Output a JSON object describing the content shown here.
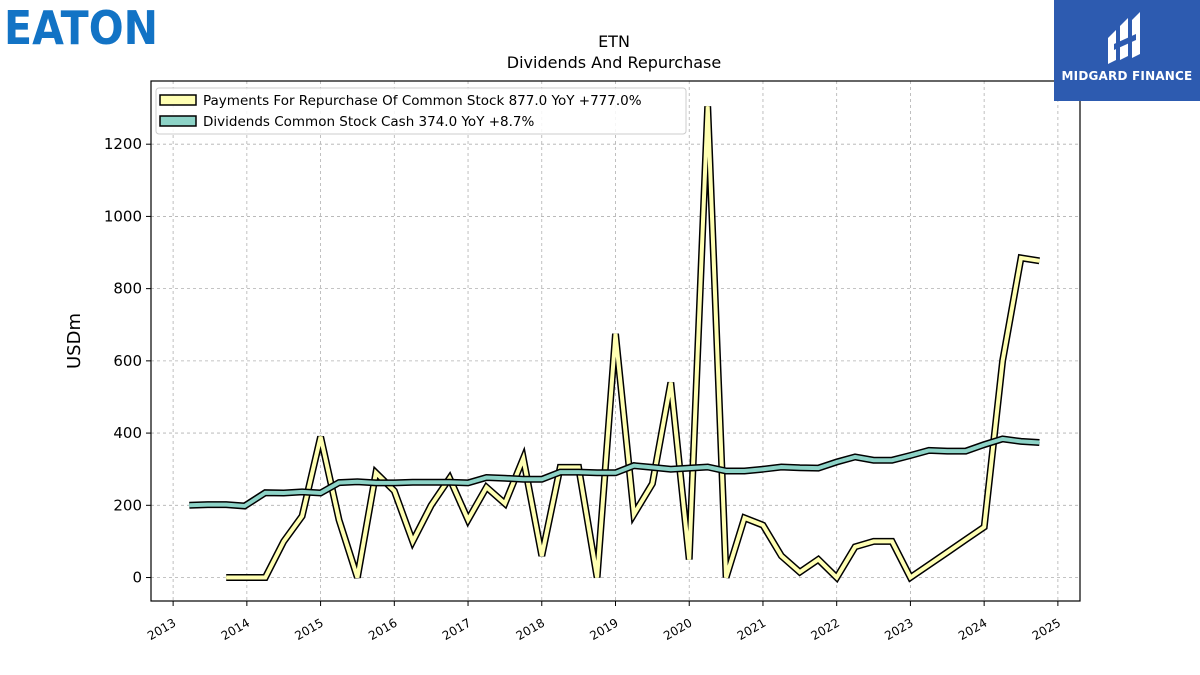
{
  "brand": {
    "company_logo_text": "EATON",
    "company_logo_color": "#1273c5",
    "partner_logo_text": "MIDGARD FINANCE",
    "partner_logo_bg": "#2d5bb0"
  },
  "chart_data": {
    "type": "line",
    "title": "ETN",
    "subtitle": "Dividends And Repurchase",
    "xlabel": "",
    "ylabel": "USDm",
    "xlim": [
      2012.7,
      2025.3
    ],
    "ylim": [
      -65,
      1375
    ],
    "grid": true,
    "legend_position": "top-left",
    "x_ticks": [
      "2013",
      "2014",
      "2015",
      "2016",
      "2017",
      "2018",
      "2019",
      "2020",
      "2021",
      "2022",
      "2023",
      "2024",
      "2025"
    ],
    "y_ticks": [
      "0",
      "200",
      "400",
      "600",
      "800",
      "1000",
      "1200"
    ],
    "series": [
      {
        "name": "Payments For Repurchase Of Common Stock  877.0 YoY +777.0%",
        "color": "#ffffb3",
        "x": [
          2013.72,
          2013.97,
          2014.25,
          2014.5,
          2014.75,
          2015.0,
          2015.25,
          2015.5,
          2015.75,
          2016.0,
          2016.25,
          2016.5,
          2016.75,
          2017.0,
          2017.25,
          2017.5,
          2017.75,
          2018.0,
          2018.25,
          2018.5,
          2018.75,
          2019.0,
          2019.25,
          2019.5,
          2019.75,
          2020.0,
          2020.25,
          2020.5,
          2020.75,
          2021.0,
          2021.25,
          2021.5,
          2021.75,
          2022.0,
          2022.25,
          2022.5,
          2022.75,
          2023.0,
          2023.25,
          2023.5,
          2023.75,
          2024.0,
          2024.25,
          2024.5,
          2024.75
        ],
        "values": [
          0,
          0,
          0,
          100,
          170,
          390,
          160,
          0,
          290,
          240,
          100,
          200,
          275,
          160,
          250,
          205,
          330,
          60,
          305,
          305,
          0,
          675,
          175,
          260,
          540,
          50,
          1305,
          0,
          165,
          145,
          60,
          15,
          50,
          0,
          85,
          100,
          100,
          0,
          35,
          70,
          105,
          140,
          600,
          885,
          877
        ]
      },
      {
        "name": "Dividends Common Stock Cash  374.0 YoY +8.7%",
        "color": "#8dd3c7",
        "x": [
          2013.22,
          2013.47,
          2013.72,
          2013.97,
          2014.25,
          2014.5,
          2014.75,
          2015.0,
          2015.25,
          2015.5,
          2015.75,
          2016.0,
          2016.25,
          2016.5,
          2016.75,
          2017.0,
          2017.25,
          2017.5,
          2017.75,
          2018.0,
          2018.25,
          2018.5,
          2018.75,
          2019.0,
          2019.25,
          2019.5,
          2019.75,
          2020.0,
          2020.25,
          2020.5,
          2020.75,
          2021.0,
          2021.25,
          2021.5,
          2021.75,
          2022.0,
          2022.25,
          2022.5,
          2022.75,
          2023.0,
          2023.25,
          2023.5,
          2023.75,
          2024.0,
          2024.25,
          2024.5,
          2024.75
        ],
        "values": [
          200,
          202,
          202,
          198,
          235,
          234,
          237,
          234,
          263,
          265,
          262,
          262,
          264,
          264,
          264,
          262,
          277,
          275,
          272,
          272,
          292,
          292,
          290,
          290,
          310,
          305,
          300,
          303,
          306,
          295,
          295,
          300,
          306,
          304,
          303,
          320,
          334,
          325,
          325,
          338,
          352,
          350,
          350,
          368,
          384,
          377,
          374
        ]
      }
    ]
  }
}
